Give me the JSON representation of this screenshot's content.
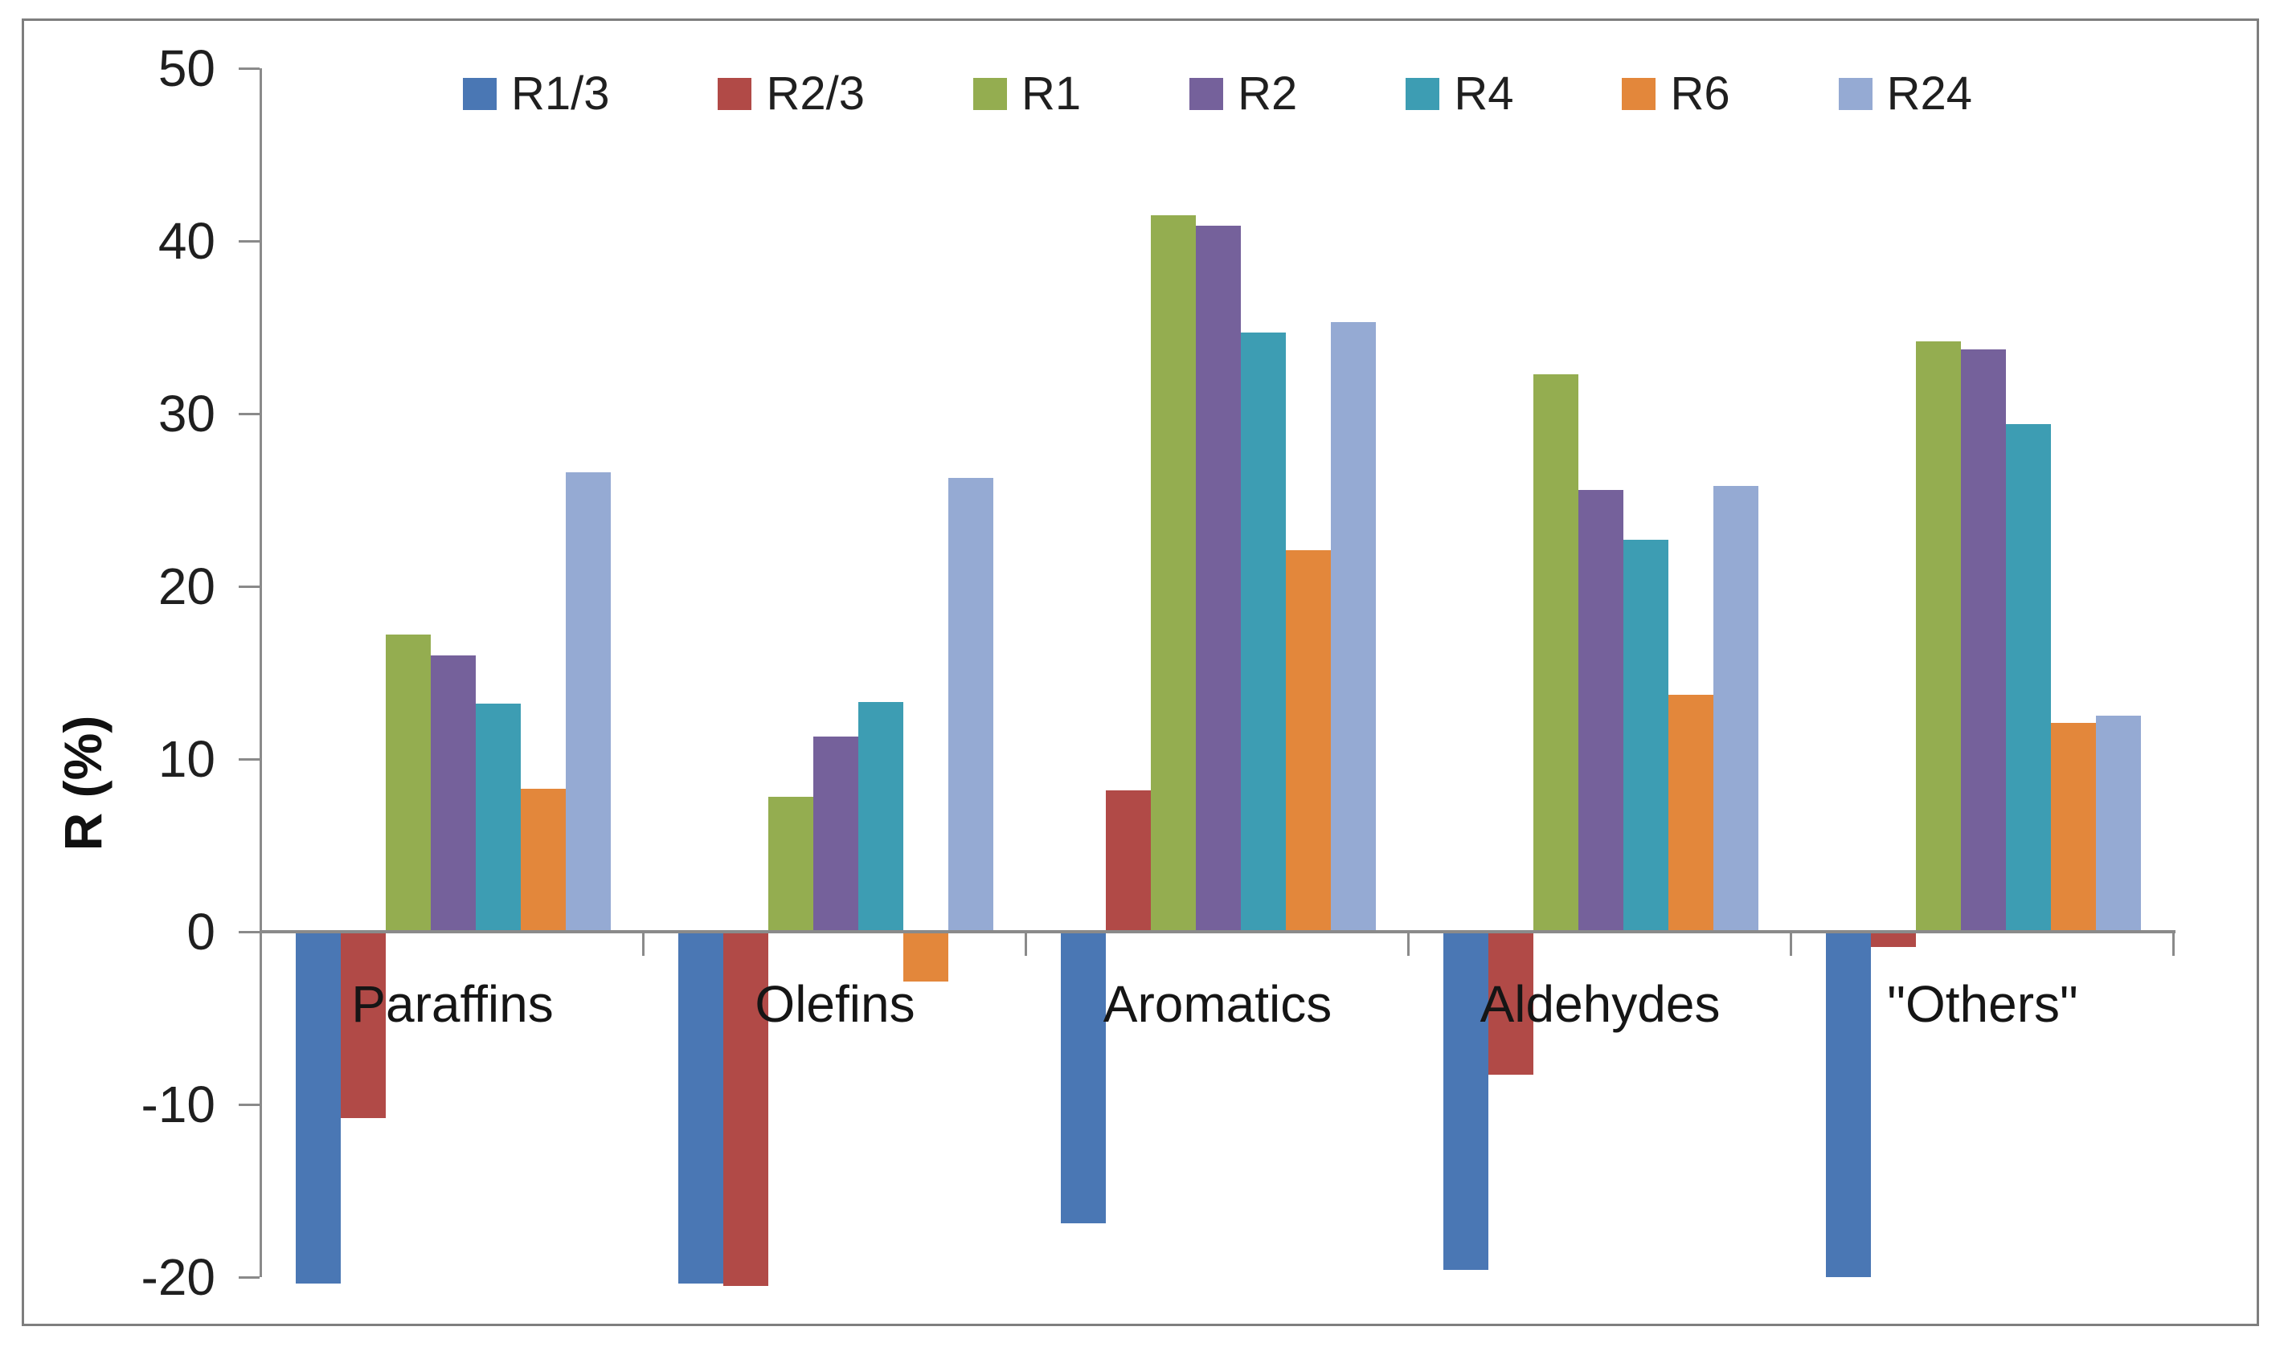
{
  "chart_data": {
    "type": "bar",
    "title": "",
    "ylabel": "R (%)",
    "categories": [
      "Paraffins",
      "Olefins",
      "Aromatics",
      "Aldehydes",
      "\"Others\""
    ],
    "yticks": [
      "50",
      "40",
      "30",
      "20",
      "10",
      "0",
      "-10",
      "-20"
    ],
    "ylim": [
      -20,
      50
    ],
    "grid": false,
    "legend_position": "top-center",
    "axis_color": "#8A8A8A",
    "text_color": "#1F1F1F",
    "series": [
      {
        "name": "R1/3",
        "color": "#4A77B4",
        "values": [
          -20.3,
          -20.3,
          -16.8,
          -19.5,
          -19.9
        ]
      },
      {
        "name": "R2/3",
        "color": "#B14A47",
        "values": [
          -10.7,
          -20.4,
          8.2,
          -8.2,
          -0.8
        ]
      },
      {
        "name": "R1",
        "color": "#94AD50",
        "values": [
          17.2,
          7.8,
          41.5,
          32.3,
          34.2
        ]
      },
      {
        "name": "R2",
        "color": "#75619B",
        "values": [
          16.0,
          11.3,
          40.9,
          25.6,
          33.7
        ]
      },
      {
        "name": "R4",
        "color": "#3D9DB3",
        "values": [
          13.2,
          13.3,
          34.7,
          22.7,
          29.4
        ]
      },
      {
        "name": "R6",
        "color": "#E3873B",
        "values": [
          8.3,
          -2.8,
          22.1,
          13.7,
          12.1
        ]
      },
      {
        "name": "R24",
        "color": "#95AAD3",
        "values": [
          26.6,
          26.3,
          35.3,
          25.8,
          12.5
        ]
      }
    ]
  }
}
